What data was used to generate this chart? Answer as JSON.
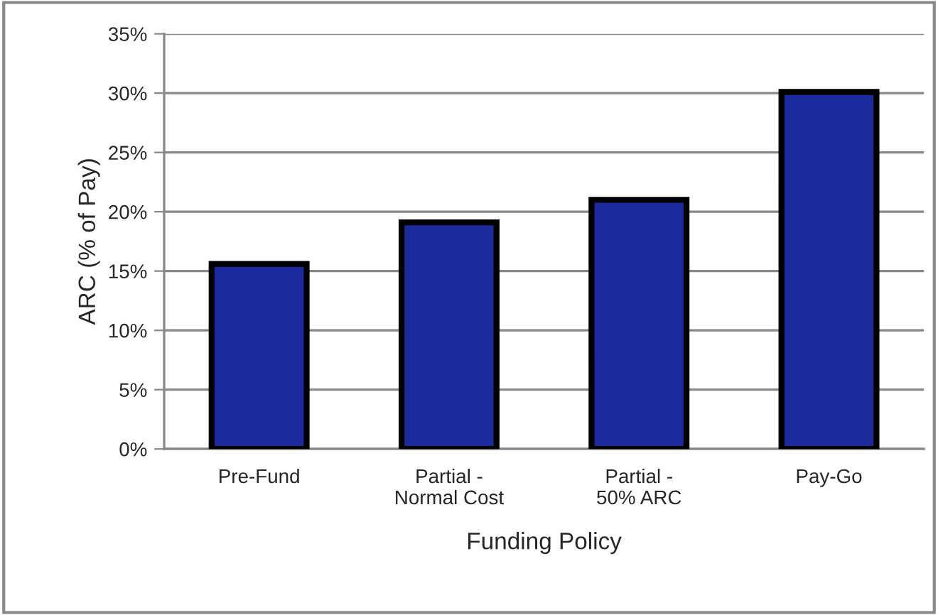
{
  "chart_data": {
    "type": "bar",
    "xlabel": "Funding Policy",
    "ylabel": "ARC (% of Pay)",
    "categories": [
      "Pre-Fund",
      "Partial -\nNormal Cost",
      "Partial -\n50% ARC",
      "Pay-Go"
    ],
    "values": [
      15.6,
      19.1,
      21.0,
      30.1
    ],
    "color": "#1b2a9c",
    "ylim": [
      0,
      35
    ],
    "yticks": [
      {
        "value": 0,
        "label": "0%"
      },
      {
        "value": 5,
        "label": "5%"
      },
      {
        "value": 10,
        "label": "10%"
      },
      {
        "value": 15,
        "label": "15%"
      },
      {
        "value": 20,
        "label": "20%"
      },
      {
        "value": 25,
        "label": "25%"
      },
      {
        "value": 30,
        "label": "30%"
      },
      {
        "value": 35,
        "label": "35%"
      }
    ],
    "grid": "y",
    "legend": false
  }
}
